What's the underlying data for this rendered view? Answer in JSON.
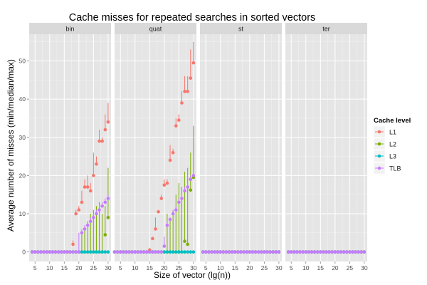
{
  "chart_data": {
    "type": "scatter",
    "title": "Cache misses for repeated searches in sorted vectors",
    "xlabel": "Size of vector (lg(n))",
    "ylabel": "Average number of misses (min/median/max)",
    "xlim": [
      3,
      31
    ],
    "ylim": [
      -2.5,
      57
    ],
    "x_ticks": [
      5,
      10,
      15,
      20,
      25,
      30
    ],
    "y_ticks": [
      0,
      10,
      20,
      30,
      40,
      50
    ],
    "grid": true,
    "facets": [
      "bin",
      "quat",
      "st",
      "ter"
    ],
    "legend": {
      "title": "Cache level",
      "position": "right",
      "entries": [
        "L1",
        "L2",
        "L3",
        "TLB"
      ]
    },
    "colors": {
      "L1": "#f8766d",
      "L2": "#7cae00",
      "L3": "#00bfc4",
      "TLB": "#c77cff"
    },
    "x": [
      4,
      5,
      6,
      7,
      8,
      9,
      10,
      11,
      12,
      13,
      14,
      15,
      16,
      17,
      18,
      19,
      20,
      21,
      22,
      23,
      24,
      25,
      26,
      27,
      28,
      29,
      30
    ],
    "series": {
      "bin": {
        "L1": {
          "y": [
            0,
            0,
            0,
            0,
            0,
            0,
            0,
            0,
            0,
            0,
            0,
            0,
            0,
            0,
            2,
            10,
            11,
            13,
            17,
            17,
            16,
            20,
            23,
            29,
            29,
            32,
            34
          ],
          "max": [
            0,
            0,
            0,
            0,
            0,
            0,
            0,
            0,
            0,
            0,
            0,
            0,
            0,
            0,
            3,
            11,
            12,
            16,
            19,
            20,
            18,
            26,
            25,
            32,
            30,
            36,
            39
          ]
        },
        "L2": {
          "y": [
            0,
            0,
            0,
            0,
            0,
            0,
            0,
            0,
            0,
            0,
            0,
            0,
            0,
            0,
            0,
            0,
            0,
            0,
            0,
            0,
            0,
            0,
            0,
            0,
            0,
            4.5,
            9
          ],
          "max": [
            0,
            0,
            0,
            0,
            0,
            0,
            0,
            0,
            0,
            0,
            0,
            0,
            0,
            0,
            0,
            0,
            0,
            5,
            6,
            8,
            10,
            11,
            12,
            13,
            10,
            12,
            22
          ]
        },
        "L3": {
          "y": [
            0,
            0,
            0,
            0,
            0,
            0,
            0,
            0,
            0,
            0,
            0,
            0,
            0,
            0,
            0,
            0,
            0,
            0,
            0,
            0,
            0,
            0,
            0,
            0,
            0,
            0,
            0
          ],
          "max": [
            0,
            0,
            0,
            0,
            0,
            0,
            0,
            0,
            0,
            0,
            0,
            0,
            0,
            0,
            0,
            0,
            0,
            0,
            0,
            0,
            0,
            0,
            0,
            0,
            0,
            0,
            0
          ]
        },
        "TLB": {
          "y": [
            0,
            0,
            0,
            0,
            0,
            0,
            0,
            0,
            0,
            0,
            0,
            0,
            0,
            0,
            0,
            0,
            0,
            5,
            6,
            7,
            8,
            9,
            10,
            11,
            12,
            13,
            14
          ],
          "max": [
            0,
            0,
            0,
            0,
            0,
            0,
            0,
            0,
            0,
            0,
            0,
            0,
            0,
            0,
            0,
            0,
            5,
            6,
            7,
            8,
            9,
            10,
            11,
            12,
            13,
            14,
            15
          ]
        }
      },
      "quat": {
        "L1": {
          "y": [
            0,
            0,
            0,
            0,
            0,
            0,
            0,
            0,
            0,
            0,
            0,
            0,
            0.5,
            3.5,
            6,
            10.5,
            14,
            17.5,
            18,
            24,
            26,
            33,
            34.5,
            39,
            42,
            42,
            45.5,
            49.5
          ],
          "max": [
            0,
            0,
            0,
            0,
            0,
            0,
            0,
            0,
            0,
            0,
            0,
            0,
            1,
            4,
            9,
            11,
            15,
            19,
            19,
            28,
            27,
            35,
            36,
            42,
            46,
            46,
            53,
            55
          ]
        },
        "L2": {
          "y": [
            0,
            0,
            0,
            0,
            0,
            0,
            0,
            0,
            0,
            0,
            0,
            0,
            0,
            0,
            0,
            0,
            0,
            0,
            0,
            0,
            0,
            0,
            0,
            0,
            2.8,
            2,
            16.2,
            19.5
          ],
          "max": [
            0,
            0,
            0,
            0,
            0,
            0,
            0,
            0,
            0,
            0,
            0,
            0,
            0,
            0,
            0,
            0,
            0,
            0,
            10,
            9,
            11,
            15,
            18,
            17,
            21,
            22,
            26,
            33
          ]
        },
        "L3": {
          "y": [
            0,
            0,
            0,
            0,
            0,
            0,
            0,
            0,
            0,
            0,
            0,
            0,
            0,
            0,
            0,
            0,
            0,
            0,
            0,
            0,
            0,
            0,
            0,
            0,
            0,
            0,
            0,
            0
          ],
          "max": [
            0,
            0,
            0,
            0,
            0,
            0,
            0,
            0,
            0,
            0,
            0,
            0,
            0,
            0,
            0,
            0,
            0,
            0,
            0,
            0,
            0,
            0,
            0,
            0,
            0,
            0,
            0,
            0
          ]
        },
        "TLB": {
          "y": [
            0,
            0,
            0,
            0,
            0,
            0,
            0,
            0,
            0,
            0,
            0,
            0,
            0,
            0,
            0,
            0,
            0,
            1.5,
            7,
            8.5,
            10,
            11,
            13,
            14,
            16,
            17,
            19,
            20
          ],
          "max": [
            0,
            0,
            0,
            0,
            0,
            0,
            0,
            0,
            0,
            0,
            0,
            0,
            0,
            0,
            0,
            0,
            0,
            4,
            8,
            9,
            11,
            12,
            14,
            15,
            17,
            18,
            20,
            21
          ]
        }
      },
      "st": {
        "L1": {
          "y": [
            0,
            0,
            0,
            0,
            0,
            0,
            0,
            0,
            0,
            0,
            0,
            0,
            0,
            0,
            0,
            0,
            0,
            0,
            0,
            0,
            0,
            0,
            0,
            0,
            0,
            0,
            0
          ],
          "max": [
            0,
            0,
            0,
            0,
            0,
            0,
            0,
            0,
            0,
            0,
            0,
            0,
            0,
            0,
            0,
            0,
            0,
            0,
            0,
            0,
            0,
            0,
            0,
            0,
            0,
            0,
            0
          ]
        },
        "L2": {
          "y": [
            0,
            0,
            0,
            0,
            0,
            0,
            0,
            0,
            0,
            0,
            0,
            0,
            0,
            0,
            0,
            0,
            0,
            0,
            0,
            0,
            0,
            0,
            0,
            0,
            0,
            0,
            0
          ],
          "max": [
            0,
            0,
            0,
            0,
            0,
            0,
            0,
            0,
            0,
            0,
            0,
            0,
            0,
            0,
            0,
            0,
            0,
            0,
            0,
            0,
            0,
            0,
            0,
            0,
            0,
            0,
            0
          ]
        },
        "L3": {
          "y": [
            0,
            0,
            0,
            0,
            0,
            0,
            0,
            0,
            0,
            0,
            0,
            0,
            0,
            0,
            0,
            0,
            0,
            0,
            0,
            0,
            0,
            0,
            0,
            0,
            0,
            0,
            0
          ],
          "max": [
            0,
            0,
            0,
            0,
            0,
            0,
            0,
            0,
            0,
            0,
            0,
            0,
            0,
            0,
            0,
            0,
            0,
            0,
            0,
            0,
            0,
            0,
            0,
            0,
            0,
            0,
            0
          ]
        },
        "TLB": {
          "y": [
            0,
            0,
            0,
            0,
            0,
            0,
            0,
            0,
            0,
            0,
            0,
            0,
            0,
            0,
            0,
            0,
            0,
            0,
            0,
            0,
            0,
            0,
            0,
            0,
            0,
            0,
            0
          ],
          "max": [
            0,
            0,
            0,
            0,
            0,
            0,
            0,
            0,
            0,
            0,
            0,
            0,
            0,
            0,
            0,
            0,
            0,
            0,
            0,
            0,
            0,
            0,
            0,
            0,
            0,
            0,
            0
          ]
        }
      },
      "ter": {
        "L1": {
          "y": [
            0,
            0,
            0,
            0,
            0,
            0,
            0,
            0,
            0,
            0,
            0,
            0,
            0,
            0,
            0,
            0,
            0,
            0,
            0,
            0,
            0,
            0,
            0,
            0,
            0,
            0,
            0
          ],
          "max": [
            0,
            0,
            0,
            0,
            0,
            0,
            0,
            0,
            0,
            0,
            0,
            0,
            0,
            0,
            0,
            0,
            0,
            0,
            0,
            0,
            0,
            0,
            0,
            0,
            0,
            0,
            0
          ]
        },
        "L2": {
          "y": [
            0,
            0,
            0,
            0,
            0,
            0,
            0,
            0,
            0,
            0,
            0,
            0,
            0,
            0,
            0,
            0,
            0,
            0,
            0,
            0,
            0,
            0,
            0,
            0,
            0,
            0,
            0
          ],
          "max": [
            0,
            0,
            0,
            0,
            0,
            0,
            0,
            0,
            0,
            0,
            0,
            0,
            0,
            0,
            0,
            0,
            0,
            0,
            0,
            0,
            0,
            0,
            0,
            0,
            0,
            0,
            0
          ]
        },
        "L3": {
          "y": [
            0,
            0,
            0,
            0,
            0,
            0,
            0,
            0,
            0,
            0,
            0,
            0,
            0,
            0,
            0,
            0,
            0,
            0,
            0,
            0,
            0,
            0,
            0,
            0,
            0,
            0,
            0
          ],
          "max": [
            0,
            0,
            0,
            0,
            0,
            0,
            0,
            0,
            0,
            0,
            0,
            0,
            0,
            0,
            0,
            0,
            0,
            0,
            0,
            0,
            0,
            0,
            0,
            0,
            0,
            0,
            0
          ]
        },
        "TLB": {
          "y": [
            0,
            0,
            0,
            0,
            0,
            0,
            0,
            0,
            0,
            0,
            0,
            0,
            0,
            0,
            0,
            0,
            0,
            0,
            0,
            0,
            0,
            0,
            0,
            0,
            0,
            0,
            0
          ],
          "max": [
            0,
            0,
            0,
            0,
            0,
            0,
            0,
            0,
            0,
            0,
            0,
            0,
            0,
            0,
            0,
            0,
            0,
            0,
            0,
            0,
            0,
            0,
            0,
            0,
            0,
            0,
            0
          ]
        }
      }
    },
    "quat_x": [
      3,
      4,
      5,
      6,
      7,
      8,
      9,
      10,
      11,
      12,
      13,
      14,
      15,
      16,
      17,
      18,
      19,
      20,
      21,
      22,
      23,
      24,
      25,
      26,
      27,
      28,
      29,
      30
    ]
  }
}
